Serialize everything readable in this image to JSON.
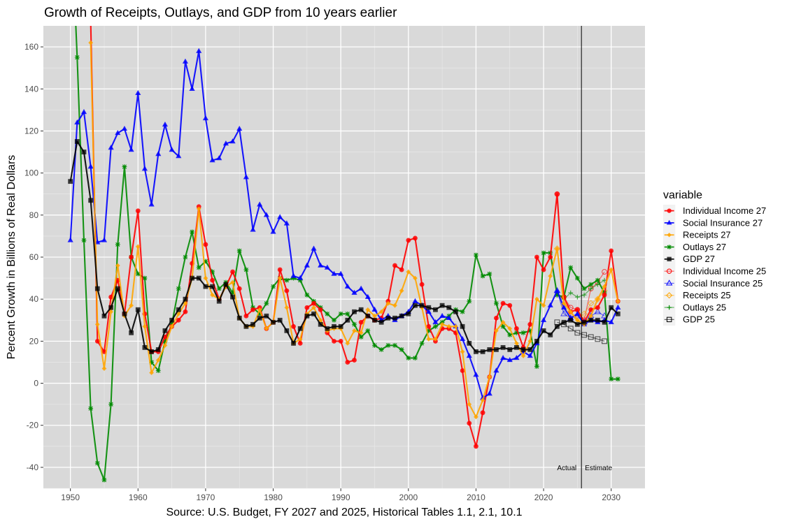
{
  "chart_data": {
    "type": "line",
    "title": "Growth of Receipts, Outlays, and GDP from 10 years earlier",
    "xlabel": "Source: U.S. Budget, FY 2027 and 2025, Historical Tables 1.1, 2.1, 10.1",
    "ylabel": "Percent Growth in Billions of Real Dollars",
    "xlim": [
      1946,
      2035
    ],
    "ylim": [
      -50,
      170
    ],
    "x_ticks": [
      1950,
      1960,
      1970,
      1980,
      1990,
      2000,
      2010,
      2020,
      2030
    ],
    "y_ticks": [
      -40,
      -20,
      0,
      20,
      40,
      60,
      80,
      100,
      120,
      140,
      160
    ],
    "grid": true,
    "legend_title": "variable",
    "legend_position": "right",
    "divider_year": 2025.6,
    "annotations": [
      "Actual",
      "Estimate"
    ],
    "series": [
      {
        "name": "Individual Income 27",
        "color": "#ff0000",
        "marker": "circle",
        "x": [
          1953,
          1954,
          1955,
          1956,
          1957,
          1958,
          1959,
          1960,
          1961,
          1962,
          1963,
          1964,
          1965,
          1966,
          1967,
          1968,
          1969,
          1970,
          1971,
          1972,
          1973,
          1974,
          1975,
          1976,
          1977,
          1978,
          1979,
          1980,
          1981,
          1982,
          1983,
          1984,
          1985,
          1986,
          1987,
          1988,
          1989,
          1990,
          1991,
          1992,
          1993,
          1994,
          1995,
          1996,
          1997,
          1998,
          1999,
          2000,
          2001,
          2002,
          2003,
          2004,
          2005,
          2006,
          2007,
          2008,
          2009,
          2010,
          2011,
          2012,
          2013,
          2014,
          2015,
          2016,
          2017,
          2018,
          2019,
          2020,
          2021,
          2022,
          2023,
          2024,
          2025,
          2026,
          2027,
          2028,
          2029,
          2030,
          2031
        ],
        "y": [
          172,
          20,
          15,
          41,
          49,
          33,
          60,
          82,
          33,
          15,
          15,
          22,
          27,
          30,
          34,
          57,
          84,
          66,
          49,
          40,
          46,
          53,
          45,
          32,
          35,
          36,
          26,
          29,
          54,
          44,
          27,
          19,
          36,
          38,
          35,
          24,
          20,
          20,
          10,
          11,
          29,
          32,
          30,
          31,
          39,
          56,
          54,
          68,
          69,
          47,
          27,
          20,
          26,
          26,
          24,
          6,
          -19,
          -30,
          -14,
          3,
          31,
          38,
          37,
          26,
          17,
          28,
          60,
          54,
          60,
          90,
          41,
          34,
          35,
          29,
          35,
          36,
          42,
          63,
          39
        ]
      },
      {
        "name": "Social Insurance 27",
        "color": "#0000ff",
        "marker": "triangle",
        "x": [
          1950,
          1951,
          1952,
          1953,
          1954,
          1955,
          1956,
          1957,
          1958,
          1959,
          1960,
          1961,
          1962,
          1963,
          1964,
          1965,
          1966,
          1967,
          1968,
          1969,
          1970,
          1971,
          1972,
          1973,
          1974,
          1975,
          1976,
          1977,
          1978,
          1979,
          1980,
          1981,
          1982,
          1983,
          1984,
          1985,
          1986,
          1987,
          1988,
          1989,
          1990,
          1991,
          1992,
          1993,
          1994,
          1995,
          1996,
          1997,
          1998,
          1999,
          2000,
          2001,
          2002,
          2003,
          2004,
          2005,
          2006,
          2007,
          2008,
          2009,
          2010,
          2011,
          2012,
          2013,
          2014,
          2015,
          2016,
          2017,
          2018,
          2019,
          2020,
          2021,
          2022,
          2023,
          2024,
          2025,
          2026,
          2027,
          2028,
          2029,
          2030,
          2031
        ],
        "y": [
          68,
          124,
          129,
          103,
          67,
          68,
          112,
          119,
          121,
          111,
          138,
          102,
          85,
          109,
          123,
          111,
          108,
          153,
          140,
          158,
          126,
          106,
          107,
          114,
          115,
          121,
          98,
          73,
          85,
          80,
          72,
          79,
          76,
          51,
          50,
          56,
          64,
          56,
          55,
          52,
          52,
          46,
          43,
          45,
          41,
          35,
          30,
          32,
          30,
          32,
          34,
          39,
          37,
          34,
          29,
          32,
          31,
          27,
          21,
          13,
          4,
          -7,
          -5,
          6,
          12,
          11,
          12,
          15,
          13,
          19,
          30,
          37,
          44,
          36,
          31,
          33,
          28,
          30,
          29,
          30,
          29,
          36
        ]
      },
      {
        "name": "Receipts 27",
        "color": "#ffa500",
        "marker": "diamond",
        "x": [
          1953,
          1954,
          1955,
          1956,
          1957,
          1958,
          1959,
          1960,
          1961,
          1962,
          1963,
          1964,
          1965,
          1966,
          1967,
          1968,
          1969,
          1970,
          1971,
          1972,
          1973,
          1974,
          1975,
          1976,
          1977,
          1978,
          1979,
          1980,
          1981,
          1982,
          1983,
          1984,
          1985,
          1986,
          1987,
          1988,
          1989,
          1990,
          1991,
          1992,
          1993,
          1994,
          1995,
          1996,
          1997,
          1998,
          1999,
          2000,
          2001,
          2002,
          2003,
          2004,
          2005,
          2006,
          2007,
          2008,
          2009,
          2010,
          2011,
          2012,
          2013,
          2014,
          2015,
          2016,
          2017,
          2018,
          2019,
          2020,
          2021,
          2022,
          2023,
          2024,
          2025,
          2026,
          2027,
          2028,
          2029,
          2030,
          2031
        ],
        "y": [
          162,
          28,
          7,
          34,
          56,
          32,
          37,
          65,
          27,
          5,
          11,
          18,
          27,
          33,
          38,
          50,
          83,
          50,
          42,
          40,
          46,
          48,
          31,
          27,
          27,
          35,
          26,
          29,
          50,
          36,
          19,
          21,
          33,
          36,
          30,
          25,
          26,
          26,
          19,
          25,
          24,
          35,
          32,
          34,
          38,
          37,
          44,
          53,
          50,
          36,
          21,
          21,
          28,
          27,
          27,
          15,
          -10,
          -16,
          -8,
          3,
          25,
          29,
          26,
          19,
          13,
          20,
          40,
          37,
          51,
          64,
          38,
          34,
          30,
          28,
          32,
          40,
          46,
          54,
          39
        ]
      },
      {
        "name": "Outlays 27",
        "color": "#008b00",
        "marker": "asterisk",
        "x": [
          1950,
          1951,
          1952,
          1953,
          1954,
          1955,
          1956,
          1957,
          1958,
          1959,
          1960,
          1961,
          1962,
          1963,
          1964,
          1965,
          1966,
          1967,
          1968,
          1969,
          1970,
          1971,
          1972,
          1973,
          1974,
          1975,
          1976,
          1977,
          1978,
          1979,
          1980,
          1981,
          1982,
          1983,
          1984,
          1985,
          1986,
          1987,
          1988,
          1989,
          1990,
          1991,
          1992,
          1993,
          1994,
          1995,
          1996,
          1997,
          1998,
          1999,
          2000,
          2001,
          2002,
          2003,
          2004,
          2005,
          2006,
          2007,
          2008,
          2009,
          2010,
          2011,
          2012,
          2013,
          2014,
          2015,
          2016,
          2017,
          2018,
          2019,
          2020,
          2021,
          2022,
          2023,
          2024,
          2025,
          2026,
          2027,
          2028,
          2029,
          2030,
          2031
        ],
        "y": [
          230,
          155,
          68,
          -12,
          -38,
          -46,
          -10,
          66,
          103,
          60,
          52,
          50,
          10,
          6,
          20,
          28,
          45,
          60,
          72,
          55,
          58,
          53,
          45,
          48,
          43,
          63,
          54,
          36,
          33,
          38,
          46,
          50,
          49,
          50,
          49,
          42,
          39,
          36,
          33,
          30,
          33,
          33,
          28,
          22,
          25,
          18,
          16,
          18,
          18,
          16,
          12,
          12,
          19,
          25,
          27,
          29,
          32,
          35,
          34,
          39,
          61,
          51,
          52,
          38,
          27,
          23,
          24,
          24,
          25,
          8,
          62,
          62,
          42,
          41,
          55,
          50,
          45,
          47,
          49,
          43,
          2,
          2
        ]
      },
      {
        "name": "GDP 27",
        "color": "#000000",
        "marker": "square",
        "x": [
          1950,
          1951,
          1952,
          1953,
          1954,
          1955,
          1956,
          1957,
          1958,
          1959,
          1960,
          1961,
          1962,
          1963,
          1964,
          1965,
          1966,
          1967,
          1968,
          1969,
          1970,
          1971,
          1972,
          1973,
          1974,
          1975,
          1976,
          1977,
          1978,
          1979,
          1980,
          1981,
          1982,
          1983,
          1984,
          1985,
          1986,
          1987,
          1988,
          1989,
          1990,
          1991,
          1992,
          1993,
          1994,
          1995,
          1996,
          1997,
          1998,
          1999,
          2000,
          2001,
          2002,
          2003,
          2004,
          2005,
          2006,
          2007,
          2008,
          2009,
          2010,
          2011,
          2012,
          2013,
          2014,
          2015,
          2016,
          2017,
          2018,
          2019,
          2020,
          2021,
          2022,
          2023,
          2024,
          2025,
          2026,
          2027,
          2028,
          2029,
          2030,
          2031
        ],
        "y": [
          96,
          115,
          110,
          87,
          45,
          32,
          36,
          45,
          33,
          24,
          35,
          17,
          15,
          16,
          25,
          30,
          35,
          40,
          50,
          50,
          46,
          46,
          39,
          47,
          41,
          31,
          27,
          28,
          31,
          32,
          29,
          30,
          25,
          19,
          26,
          32,
          33,
          28,
          26,
          27,
          27,
          30,
          34,
          35,
          32,
          30,
          29,
          31,
          31,
          32,
          33,
          37,
          37,
          36,
          35,
          37,
          36,
          34,
          27,
          19,
          15,
          15,
          16,
          16,
          17,
          16,
          17,
          16,
          16,
          20,
          25,
          23,
          27,
          29,
          30,
          28,
          29,
          30,
          30,
          29,
          36,
          33
        ]
      },
      {
        "name": "Individual Income 25",
        "color": "#ff0000",
        "marker": "open-circle",
        "x": [
          2022,
          2023,
          2024,
          2025,
          2026,
          2027,
          2028,
          2029
        ],
        "y": [
          90,
          41,
          36,
          35,
          30,
          45,
          48,
          53
        ]
      },
      {
        "name": "Social Insurance 25",
        "color": "#0000ff",
        "marker": "open-triangle",
        "x": [
          2022,
          2023,
          2024,
          2025,
          2026,
          2027,
          2028,
          2029
        ],
        "y": [
          44,
          33,
          31,
          32,
          29,
          32,
          34,
          32
        ]
      },
      {
        "name": "Receipts 25",
        "color": "#ffa500",
        "marker": "open-diamond",
        "x": [
          2022,
          2023,
          2024,
          2025,
          2026,
          2027,
          2028,
          2029
        ],
        "y": [
          64,
          37,
          32,
          31,
          33,
          38,
          40,
          44
        ]
      },
      {
        "name": "Outlays 25",
        "color": "#008b00",
        "marker": "plus",
        "x": [
          2022,
          2023,
          2024,
          2025,
          2026,
          2027,
          2028,
          2029
        ],
        "y": [
          42,
          40,
          43,
          41,
          42,
          45,
          47,
          49
        ]
      },
      {
        "name": "GDP 25",
        "color": "#000000",
        "marker": "open-square",
        "x": [
          2022,
          2023,
          2024,
          2025,
          2026,
          2027,
          2028,
          2029
        ],
        "y": [
          29,
          28,
          26,
          24,
          23,
          22,
          21,
          20
        ]
      }
    ]
  }
}
